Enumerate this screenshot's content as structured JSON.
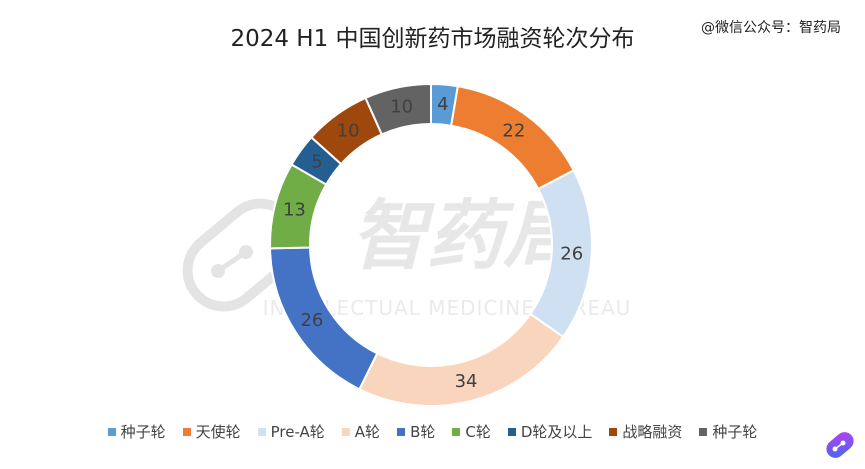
{
  "header": {
    "source_tag": "@微信公众号：智药局"
  },
  "watermark": {
    "brand": "智药局",
    "subtitle": "INTELLECTUAL MEDICINE BUREAU"
  },
  "chart_data": {
    "type": "pie",
    "style": "donut",
    "title": "2024 H1 中国创新药市场融资轮次分布",
    "legend_position": "bottom",
    "start_angle_deg": 0,
    "direction": "clockwise",
    "categories": [
      "种子轮",
      "天使轮",
      "Pre-A轮",
      "A轮",
      "B轮",
      "C轮",
      "D轮及以上",
      "战略融资",
      "种子轮"
    ],
    "values": [
      4,
      22,
      26,
      34,
      26,
      13,
      5,
      10,
      10
    ],
    "colors": [
      "#5b9bd5",
      "#ed7d31",
      "#cfe0f2",
      "#fad5bd",
      "#4472c4",
      "#70ad47",
      "#255e91",
      "#9e480e",
      "#636363"
    ],
    "label_colors": [
      "#404040",
      "#404040",
      "#404040",
      "#404040",
      "#404040",
      "#404040",
      "#404040",
      "#404040",
      "#404040"
    ]
  }
}
